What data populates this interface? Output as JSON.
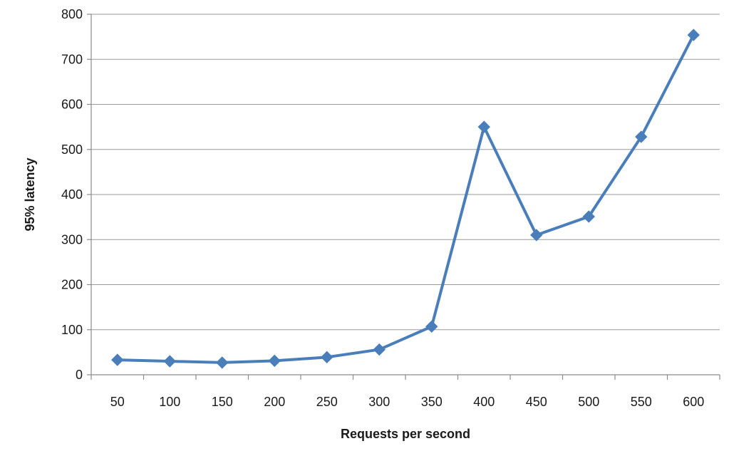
{
  "chart_data": {
    "type": "line",
    "title": "",
    "xlabel": "Requests per second",
    "ylabel": "95% latency",
    "categories": [
      "50",
      "100",
      "150",
      "200",
      "250",
      "300",
      "350",
      "400",
      "450",
      "500",
      "550",
      "600"
    ],
    "series": [
      {
        "values": [
          33,
          30,
          27,
          31,
          39,
          56,
          107,
          550,
          310,
          351,
          528,
          754
        ],
        "color": "#4a7ebb",
        "marker": "diamond"
      }
    ],
    "ylim": [
      0,
      800
    ],
    "yticks": [
      0,
      100,
      200,
      300,
      400,
      500,
      600,
      700,
      800
    ],
    "grid": true,
    "legend": "none"
  }
}
